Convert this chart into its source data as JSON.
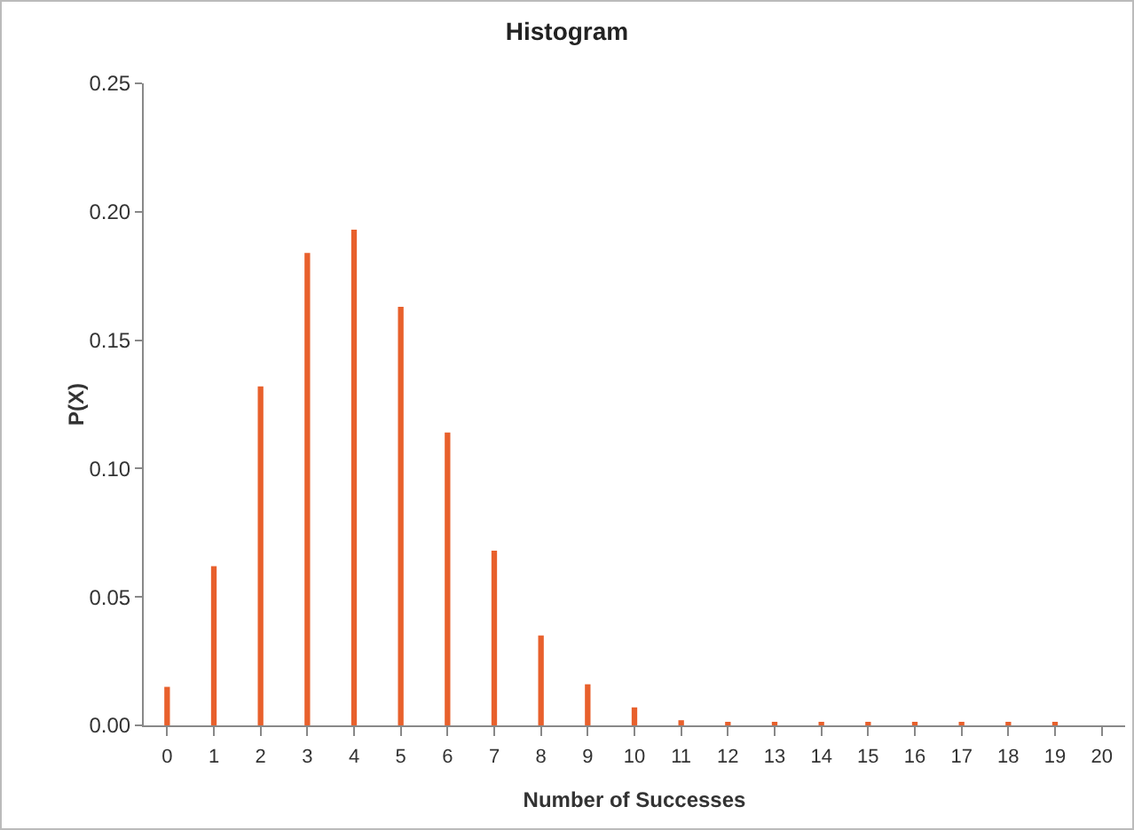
{
  "chart_data": {
    "type": "bar",
    "title": "Histogram",
    "xlabel": "Number of Successes",
    "ylabel": "P(X)",
    "categories": [
      "0",
      "1",
      "2",
      "3",
      "4",
      "5",
      "6",
      "7",
      "8",
      "9",
      "10",
      "11",
      "12",
      "13",
      "14",
      "15",
      "16",
      "17",
      "18",
      "19",
      "20"
    ],
    "values": [
      0.015,
      0.062,
      0.132,
      0.184,
      0.193,
      0.163,
      0.114,
      0.068,
      0.035,
      0.016,
      0.007,
      0.002,
      0.001,
      0.001,
      0.001,
      0.001,
      0.001,
      0.001,
      0.001,
      0.001,
      0
    ],
    "color": "#e8602c",
    "ylim": [
      0,
      0.25
    ],
    "yticks": [
      {
        "value": 0,
        "label": "0.00"
      },
      {
        "value": 0.05,
        "label": "0.05"
      },
      {
        "value": 0.1,
        "label": "0.10"
      },
      {
        "value": 0.15,
        "label": "0.15"
      },
      {
        "value": 0.2,
        "label": "0.20"
      },
      {
        "value": 0.25,
        "label": "0.25"
      }
    ],
    "grid": false,
    "legend": false
  }
}
